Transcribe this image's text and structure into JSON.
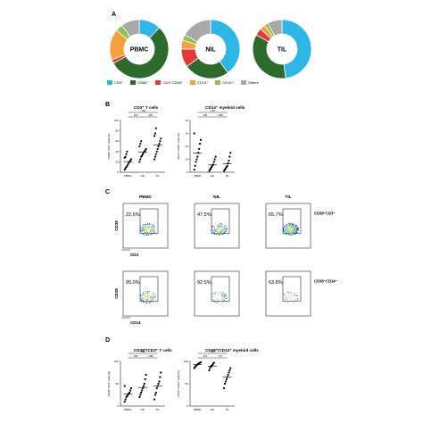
{
  "panels": {
    "A": "A",
    "B": "B",
    "C": "C",
    "D": "D"
  },
  "colors": {
    "cd3": "#2eb6e6",
    "cd56": "#2d6a2d",
    "cd3cd56": "#e03a3a",
    "cd14": "#f5a03c",
    "cd19": "#8bc34a",
    "others": "#a8a8a8"
  },
  "legend": [
    "CD3⁺",
    "CD56⁺",
    "CD3⁺CD56⁺",
    "CD14⁺",
    "CD19⁺",
    "Others"
  ],
  "chart_data": [
    {
      "type": "pie",
      "title": "PBMC",
      "categories": [
        "CD3⁺",
        "CD56⁺",
        "CD3⁺CD56⁺",
        "CD14⁺",
        "CD19⁺",
        "Others"
      ],
      "values": [
        12,
        55,
        2,
        17,
        4,
        10
      ]
    },
    {
      "type": "pie",
      "title": "NIL",
      "categories": [
        "CD3⁺",
        "CD56⁺",
        "CD3⁺CD56⁺",
        "CD14⁺",
        "CD19⁺",
        "Others"
      ],
      "values": [
        40,
        25,
        10,
        5,
        3,
        17
      ]
    },
    {
      "type": "pie",
      "title": "TIL",
      "categories": [
        "CD3⁺",
        "CD56⁺",
        "CD3⁺CD56⁺",
        "CD14⁺",
        "CD19⁺",
        "Others"
      ],
      "values": [
        48,
        35,
        4,
        3,
        2,
        8
      ]
    },
    {
      "type": "scatter",
      "title": "CD3⁺ T cells",
      "ylabel": "CD38⁺ CD3⁺ cells (%)",
      "categories": [
        "PBMC",
        "NIL",
        "TIL"
      ],
      "ylim": [
        0,
        100
      ],
      "yticks": [
        0,
        20,
        40,
        60,
        80,
        100
      ],
      "series": [
        {
          "values": [
            5,
            8,
            10,
            12,
            15,
            18,
            20,
            22,
            25,
            28,
            30,
            35,
            40
          ]
        },
        {
          "values": [
            20,
            25,
            30,
            32,
            35,
            38,
            40,
            42,
            45,
            50,
            55,
            60
          ]
        },
        {
          "values": [
            25,
            30,
            35,
            40,
            45,
            50,
            55,
            60,
            65,
            70,
            75,
            85
          ]
        }
      ],
      "annotations": [
        "<.001",
        ".020",
        ".269"
      ]
    },
    {
      "type": "scatter",
      "title": "CD14⁺ myeloid cells",
      "ylabel": "CD14⁺ CD38⁺ cells (%)",
      "categories": [
        "PBMC",
        "NIL",
        "TIL"
      ],
      "ylim": [
        0,
        40
      ],
      "yticks": [
        0,
        10,
        20,
        30,
        40
      ],
      "series": [
        {
          "values": [
            2,
            5,
            8,
            10,
            12,
            15,
            18,
            22,
            25,
            30
          ]
        },
        {
          "values": [
            1,
            2,
            3,
            4,
            5,
            6,
            8,
            10,
            12
          ]
        },
        {
          "values": [
            1,
            2,
            3,
            4,
            5,
            7,
            9,
            12,
            15
          ]
        }
      ],
      "annotations": [
        "=.051",
        ".034",
        "=.389"
      ]
    },
    {
      "type": "scatter",
      "title": "CD38⁺/CD3⁺ T cells",
      "ylabel": "CD38⁺ CD3⁺ cells (%)",
      "categories": [
        "PBMC",
        "NIL",
        "TIL"
      ],
      "ylim": [
        0,
        100
      ],
      "yticks": [
        0,
        50,
        100
      ],
      "series": [
        {
          "values": [
            10,
            15,
            20,
            22,
            25,
            28,
            30,
            35,
            40,
            45
          ]
        },
        {
          "values": [
            20,
            25,
            30,
            35,
            40,
            45,
            50,
            60,
            70
          ]
        },
        {
          "values": [
            15,
            25,
            30,
            40,
            45,
            50,
            55,
            65,
            75
          ]
        }
      ],
      "annotations": [
        ".808",
        ".040",
        "<.998"
      ]
    },
    {
      "type": "scatter",
      "title": "CD38⁺/CD14⁺ myeloid cells",
      "ylabel": "CD38⁺ CD14⁺ cells (%)",
      "categories": [
        "PBMC",
        "NIL",
        "TIL"
      ],
      "ylim": [
        0,
        100
      ],
      "yticks": [
        0,
        50,
        100
      ],
      "series": [
        {
          "values": [
            85,
            88,
            90,
            92,
            93,
            95,
            96,
            97,
            98
          ]
        },
        {
          "values": [
            80,
            85,
            88,
            90,
            92,
            95,
            97
          ]
        },
        {
          "values": [
            40,
            50,
            55,
            60,
            65,
            70,
            75,
            80,
            85
          ]
        }
      ],
      "annotations": [
        ".001",
        ".074",
        ".773"
      ]
    }
  ],
  "flow": {
    "column_labels": [
      "PBMC",
      "NIL",
      "TIL"
    ],
    "row1_label": "CD38⁺CD3⁺",
    "row2_label": "CD38⁺CD14⁺",
    "row1_percent": [
      "22.6%",
      "47.5%",
      "65.7%"
    ],
    "row2_percent": [
      "95.0%",
      "92.5%",
      "63.8%"
    ],
    "axis_cd38": "CD38",
    "axis_cd3": "CD3",
    "axis_cd14": "CD14"
  }
}
